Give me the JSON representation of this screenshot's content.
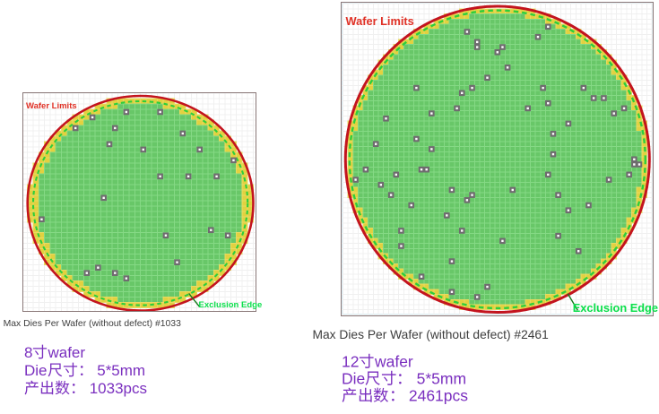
{
  "page": {
    "background": "#ffffff"
  },
  "colors": {
    "wafer_limit_circle": "#c3141e",
    "wafer_limits_text": "#e03126",
    "exclusion_circle": "#2dce3c",
    "exclusion_text": "#0bdf4b",
    "exclusion_pointer": "#15791c",
    "good_die_fill": "#68c768",
    "good_die_border": "#85d985",
    "partial_die_fill": "#e2d140",
    "partial_die_border": "#e8da62",
    "defect_fill": "#6f6b6f",
    "defect_dot": "#ffffff",
    "plot_border": "#8a7878",
    "plot_inner_tint": "#d9eef6",
    "grid_line": "#f0f0f0",
    "caption_text": "#3d3d3d",
    "info_text": "#7a2fbf"
  },
  "chart_data": [
    {
      "type": "wafer_map",
      "title": "Max Dies Per Wafer (without defect) #1033",
      "wafer_name": "8寸wafer",
      "wafer_size_inch": 8,
      "wafer_diameter_mm": 200,
      "die_width_mm": 5,
      "die_height_mm": 5,
      "edge_exclusion_mm": 5,
      "max_dies_without_defect": 1033,
      "defect_count": 23,
      "annotations": {
        "wafer_limits": "Wafer Limits",
        "exclusion_edge": "Exclusion Edge"
      },
      "info": {
        "wafer": "8寸wafer",
        "die_size": "Die尺寸： 5*5mm",
        "yield": "产出数： 1033pcs"
      },
      "defect_dies_mm": [
        [
          -12.5,
          85.0
        ],
        [
          -42.5,
          80.0
        ],
        [
          -22.5,
          70.0
        ],
        [
          -57.5,
          70.0
        ],
        [
          -27.5,
          55.0
        ],
        [
          2.5,
          50.0
        ],
        [
          -32.5,
          5.0
        ],
        [
          17.5,
          85.0
        ],
        [
          37.5,
          65.0
        ],
        [
          52.5,
          50.0
        ],
        [
          82.5,
          40.0
        ],
        [
          17.5,
          25.0
        ],
        [
          42.5,
          25.0
        ],
        [
          67.5,
          25.0
        ],
        [
          -87.5,
          -15.0
        ],
        [
          -47.5,
          -65.0
        ],
        [
          -37.5,
          -60.0
        ],
        [
          -22.5,
          -65.0
        ],
        [
          -12.5,
          -70.0
        ],
        [
          22.5,
          -30.0
        ],
        [
          62.5,
          -25.0
        ],
        [
          77.5,
          -30.0
        ],
        [
          32.5,
          -55.0
        ]
      ]
    },
    {
      "type": "wafer_map",
      "title": "Max Dies Per Wafer (without defect) #2461",
      "wafer_name": "12寸wafer",
      "wafer_size_inch": 12,
      "wafer_diameter_mm": 300,
      "die_width_mm": 5,
      "die_height_mm": 5,
      "edge_exclusion_mm": 4,
      "max_dies_without_defect": 2461,
      "defect_count": 62,
      "annotations": {
        "wafer_limits": "Wafer Limits",
        "exclusion_edge": "Exclusion Edge"
      },
      "info": {
        "wafer": "12寸wafer",
        "die_size": "Die尺寸： 5*5mm",
        "yield": "产出数： 2461pcs"
      },
      "defect_dies_mm": [
        [
          -80.0,
          70.0
        ],
        [
          -30.0,
          125.0
        ],
        [
          -20.0,
          115.0
        ],
        [
          -20.0,
          110.0
        ],
        [
          5.0,
          110.0
        ],
        [
          0.0,
          105.0
        ],
        [
          10.0,
          90.0
        ],
        [
          -10.0,
          80.0
        ],
        [
          -25.0,
          70.0
        ],
        [
          -35.0,
          65.0
        ],
        [
          40.0,
          120.0
        ],
        [
          50.0,
          130.0
        ],
        [
          45.0,
          70.0
        ],
        [
          50.0,
          55.0
        ],
        [
          -40.0,
          50.0
        ],
        [
          85.0,
          70.0
        ],
        [
          95.0,
          60.0
        ],
        [
          105.0,
          60.0
        ],
        [
          -110.0,
          40.0
        ],
        [
          -65.0,
          45.0
        ],
        [
          -120.0,
          15.0
        ],
        [
          -80.0,
          20.0
        ],
        [
          -65.0,
          10.0
        ],
        [
          -130.0,
          -10.0
        ],
        [
          -75.0,
          -10.0
        ],
        [
          -70.0,
          -10.0
        ],
        [
          -100.0,
          -15.0
        ],
        [
          -140.0,
          -20.0
        ],
        [
          -115.0,
          -25.0
        ],
        [
          -105.0,
          -35.0
        ],
        [
          -85.0,
          -45.0
        ],
        [
          30.0,
          50.0
        ],
        [
          55.0,
          25.0
        ],
        [
          55.0,
          5.0
        ],
        [
          50.0,
          -15.0
        ],
        [
          -45.0,
          -30.0
        ],
        [
          -25.0,
          -35.0
        ],
        [
          -30.0,
          -40.0
        ],
        [
          15.0,
          -30.0
        ],
        [
          115.0,
          45.0
        ],
        [
          125.0,
          50.0
        ],
        [
          70.0,
          35.0
        ],
        [
          135.0,
          0.0
        ],
        [
          135.0,
          -5.0
        ],
        [
          140.0,
          -5.0
        ],
        [
          130.0,
          -15.0
        ],
        [
          110.0,
          -20.0
        ],
        [
          60.0,
          -35.0
        ],
        [
          90.0,
          -45.0
        ],
        [
          70.0,
          -50.0
        ],
        [
          -95.0,
          -70.0
        ],
        [
          -95.0,
          -85.0
        ],
        [
          -75.0,
          -115.0
        ],
        [
          -50.0,
          -55.0
        ],
        [
          -35.0,
          -70.0
        ],
        [
          5.0,
          -80.0
        ],
        [
          -45.0,
          -100.0
        ],
        [
          -10.0,
          -125.0
        ],
        [
          -45.0,
          -130.0
        ],
        [
          -20.0,
          -135.0
        ],
        [
          60.0,
          -75.0
        ],
        [
          80.0,
          -90.0
        ]
      ]
    }
  ]
}
